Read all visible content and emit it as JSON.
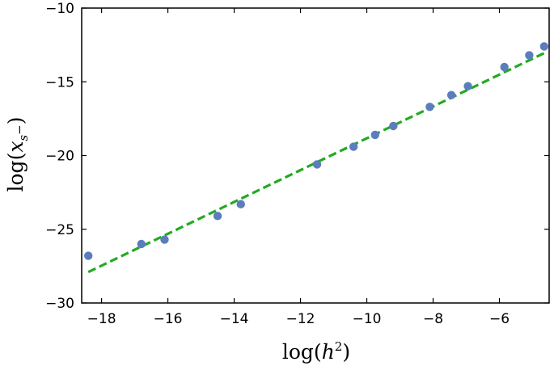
{
  "chart_data": {
    "type": "scatter",
    "xlabel": "log(h²)",
    "ylabel": "log(x_{s−})",
    "xlim": [
      -18.6,
      -4.5
    ],
    "ylim": [
      -30,
      -10
    ],
    "xticks": [
      -18,
      -16,
      -14,
      -12,
      -10,
      -8,
      -6
    ],
    "yticks": [
      -30,
      -25,
      -20,
      -15,
      -10
    ],
    "xtick_labels": [
      "−18",
      "−16",
      "−14",
      "−12",
      "−10",
      "−8",
      "−6"
    ],
    "ytick_labels": [
      "−30",
      "−25",
      "−20",
      "−15",
      "−10"
    ],
    "grid": false,
    "series": [
      {
        "kind": "points",
        "color": "#5b7dbd",
        "x": [
          -18.4,
          -16.8,
          -16.1,
          -14.5,
          -13.8,
          -11.5,
          -10.4,
          -9.75,
          -9.2,
          -8.1,
          -7.45,
          -6.95,
          -5.85,
          -5.1,
          -4.65
        ],
        "y": [
          -26.8,
          -26.0,
          -25.7,
          -24.1,
          -23.3,
          -20.6,
          -19.4,
          -18.6,
          -18.0,
          -16.7,
          -15.9,
          -15.3,
          -14.0,
          -13.2,
          -12.6
        ]
      },
      {
        "kind": "fit-line",
        "color": "#22aa22",
        "style": "dashed",
        "x": [
          -18.4,
          -4.6
        ],
        "y": [
          -27.9,
          -13.0
        ]
      }
    ]
  }
}
